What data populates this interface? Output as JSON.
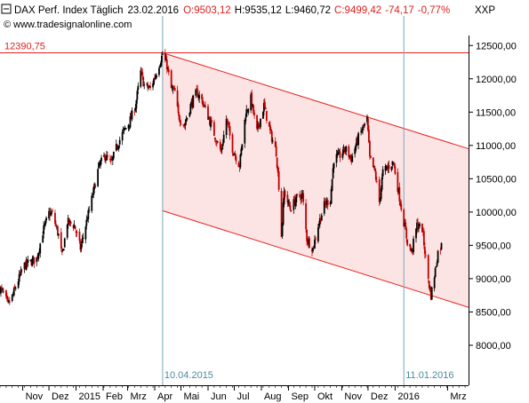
{
  "header": {
    "instrument": "DAX Perf. Index Täglich",
    "date": "23.02.2016",
    "open": "O:9503,12",
    "high": "H:9535,12",
    "low": "L:9460,72",
    "close": "C:9499,42",
    "change": "-74,17",
    "change_pct": "-0,77%",
    "symbol": "XXP",
    "source": "© www.tradesignalonline.com"
  },
  "colors": {
    "up": "#000000",
    "down": "#c00000",
    "channel_fill": "#fde4e4",
    "channel_line": "#e8201c",
    "hline": "#e8201c",
    "vline": "#7aa6b8",
    "date_label": "#4a8aa0",
    "level_label": "#e0201c"
  },
  "chart_data": {
    "type": "candlestick",
    "title": "DAX Perf. Index Täglich",
    "ylim": [
      7400,
      12650
    ],
    "y_ticks": [
      8000,
      8500,
      9000,
      9500,
      10000,
      10500,
      11000,
      11500,
      12000,
      12500
    ],
    "y_tick_labels": [
      "8000,00",
      "8500,00",
      "9000,00",
      "9500,00",
      "10000,00",
      "10500,00",
      "11000,00",
      "11500,00",
      "12000,00",
      "12500,00"
    ],
    "x_start": "2014-10-06",
    "x_end": "2016-03-25",
    "x_month_labels": [
      {
        "date": "2014-11-01",
        "label": "Nov"
      },
      {
        "date": "2014-12-01",
        "label": "Dez"
      },
      {
        "date": "2015-01-01",
        "label": "2015"
      },
      {
        "date": "2015-02-01",
        "label": "Feb"
      },
      {
        "date": "2015-03-01",
        "label": "Mrz"
      },
      {
        "date": "2015-04-01",
        "label": "Apr"
      },
      {
        "date": "2015-05-01",
        "label": "Mai"
      },
      {
        "date": "2015-06-01",
        "label": "Jun"
      },
      {
        "date": "2015-07-01",
        "label": "Jul"
      },
      {
        "date": "2015-08-01",
        "label": "Aug"
      },
      {
        "date": "2015-09-01",
        "label": "Sep"
      },
      {
        "date": "2015-10-01",
        "label": "Okt"
      },
      {
        "date": "2015-11-01",
        "label": "Nov"
      },
      {
        "date": "2015-12-01",
        "label": "Dez"
      },
      {
        "date": "2016-01-01",
        "label": "2016"
      },
      {
        "date": "2016-03-01",
        "label": "Mrz"
      }
    ],
    "horizontal_level": {
      "value": 12390.75,
      "label": "12390,75"
    },
    "vertical_markers": [
      {
        "date": "2015-04-10",
        "label": "10.04.2015"
      },
      {
        "date": "2016-01-11",
        "label": "11.01.2016"
      }
    ],
    "channel": {
      "upper": [
        {
          "date": "2015-04-10",
          "value": 12390
        },
        {
          "date": "2016-03-25",
          "value": 10950
        }
      ],
      "lower": [
        {
          "date": "2015-04-10",
          "value": 10020
        },
        {
          "date": "2016-03-25",
          "value": 8570
        }
      ]
    },
    "close_path": [
      [
        "2014-10-06",
        8850
      ],
      [
        "2014-10-10",
        8780
      ],
      [
        "2014-10-15",
        8600
      ],
      [
        "2014-10-20",
        8730
      ],
      [
        "2014-10-27",
        8980
      ],
      [
        "2014-11-03",
        9200
      ],
      [
        "2014-11-10",
        9250
      ],
      [
        "2014-11-17",
        9300
      ],
      [
        "2014-11-24",
        9700
      ],
      [
        "2014-12-01",
        9980
      ],
      [
        "2014-12-05",
        9970
      ],
      [
        "2014-12-12",
        9650
      ],
      [
        "2014-12-16",
        9330
      ],
      [
        "2014-12-22",
        9850
      ],
      [
        "2014-12-30",
        9800
      ],
      [
        "2015-01-06",
        9450
      ],
      [
        "2015-01-12",
        9800
      ],
      [
        "2015-01-20",
        10250
      ],
      [
        "2015-01-27",
        10680
      ],
      [
        "2015-02-03",
        10850
      ],
      [
        "2015-02-10",
        10720
      ],
      [
        "2015-02-17",
        11000
      ],
      [
        "2015-02-24",
        11200
      ],
      [
        "2015-03-03",
        11350
      ],
      [
        "2015-03-10",
        11600
      ],
      [
        "2015-03-16",
        12100
      ],
      [
        "2015-03-20",
        11900
      ],
      [
        "2015-03-27",
        11850
      ],
      [
        "2015-04-03",
        12100
      ],
      [
        "2015-04-10",
        12370
      ],
      [
        "2015-04-15",
        12200
      ],
      [
        "2015-04-20",
        11850
      ],
      [
        "2015-04-24",
        11800
      ],
      [
        "2015-04-28",
        11450
      ],
      [
        "2015-05-05",
        11300
      ],
      [
        "2015-05-12",
        11600
      ],
      [
        "2015-05-19",
        11800
      ],
      [
        "2015-05-26",
        11650
      ],
      [
        "2015-06-02",
        11400
      ],
      [
        "2015-06-10",
        11100
      ],
      [
        "2015-06-16",
        10900
      ],
      [
        "2015-06-22",
        11400
      ],
      [
        "2015-06-29",
        10950
      ],
      [
        "2015-07-07",
        10700
      ],
      [
        "2015-07-14",
        11480
      ],
      [
        "2015-07-20",
        11700
      ],
      [
        "2015-07-27",
        11200
      ],
      [
        "2015-08-04",
        11600
      ],
      [
        "2015-08-11",
        11200
      ],
      [
        "2015-08-18",
        10900
      ],
      [
        "2015-08-21",
        10400
      ],
      [
        "2015-08-24",
        9650
      ],
      [
        "2015-08-27",
        10300
      ],
      [
        "2015-09-03",
        10050
      ],
      [
        "2015-09-10",
        10200
      ],
      [
        "2015-09-17",
        10250
      ],
      [
        "2015-09-22",
        9600
      ],
      [
        "2015-09-29",
        9450
      ],
      [
        "2015-10-05",
        9800
      ],
      [
        "2015-10-12",
        10100
      ],
      [
        "2015-10-19",
        10200
      ],
      [
        "2015-10-23",
        10800
      ],
      [
        "2015-10-30",
        10850
      ],
      [
        "2015-11-05",
        10950
      ],
      [
        "2015-11-12",
        10800
      ],
      [
        "2015-11-20",
        11120
      ],
      [
        "2015-11-30",
        11380
      ],
      [
        "2015-12-03",
        10800
      ],
      [
        "2015-12-09",
        10600
      ],
      [
        "2015-12-14",
        10150
      ],
      [
        "2015-12-18",
        10600
      ],
      [
        "2015-12-30",
        10750
      ],
      [
        "2016-01-05",
        10300
      ],
      [
        "2016-01-11",
        9850
      ],
      [
        "2016-01-15",
        9550
      ],
      [
        "2016-01-20",
        9400
      ],
      [
        "2016-01-26",
        9800
      ],
      [
        "2016-02-01",
        9750
      ],
      [
        "2016-02-05",
        9300
      ],
      [
        "2016-02-09",
        8900
      ],
      [
        "2016-02-11",
        8750
      ],
      [
        "2016-02-16",
        9130
      ],
      [
        "2016-02-19",
        9400
      ],
      [
        "2016-02-23",
        9499
      ]
    ]
  }
}
